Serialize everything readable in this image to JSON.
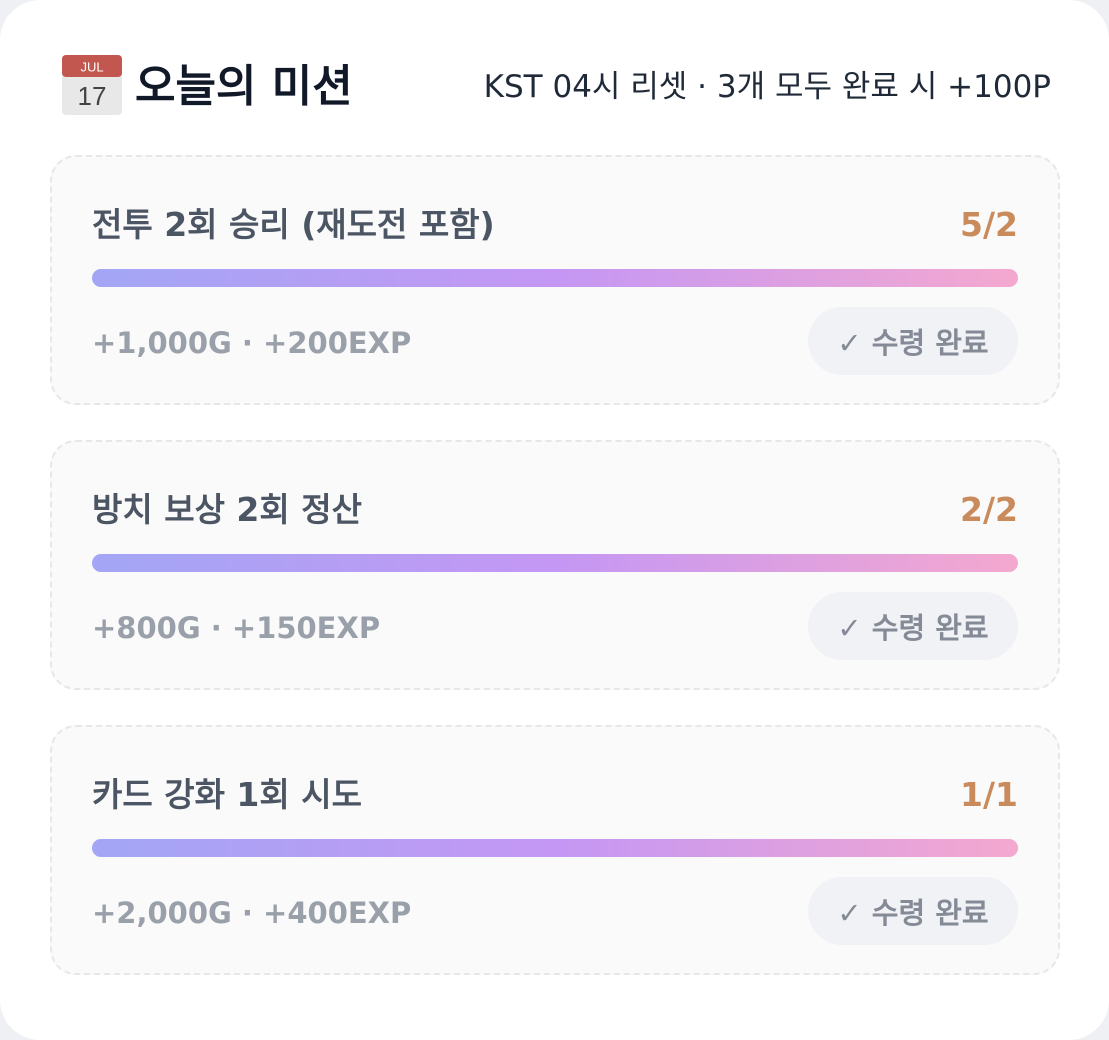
{
  "header": {
    "icon": {
      "month": "JUL",
      "day": "17"
    },
    "title": "오늘의 미션",
    "subtitle": "KST 04시 리셋 · 3개 모두 완료 시 +100P"
  },
  "missions": [
    {
      "title": "전투 2회 승리 (재도전 포함)",
      "progress": "5/2",
      "reward": "+1,000G · +200EXP",
      "button": "✓ 수령 완료"
    },
    {
      "title": "방치 보상 2회 정산",
      "progress": "2/2",
      "reward": "+800G · +150EXP",
      "button": "✓ 수령 완료"
    },
    {
      "title": "카드 강화 1회 시도",
      "progress": "1/1",
      "reward": "+2,000G · +400EXP",
      "button": "✓ 수령 완료"
    }
  ]
}
